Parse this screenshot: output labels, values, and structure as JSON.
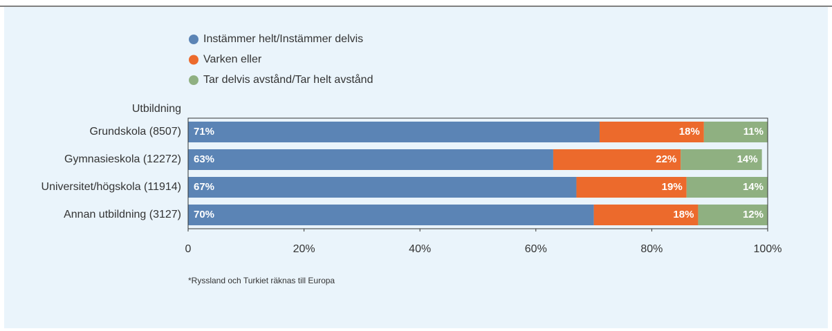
{
  "chart_data": {
    "type": "stacked_bar_horizontal",
    "y_label": "Utbildning",
    "categories": [
      "Grundskola (8507)",
      "Gymnasieskola (12272)",
      "Universitet/högskola (11914)",
      "Annan utbildning (3127)"
    ],
    "series": [
      {
        "name": "Instämmer helt/Instämmer delvis",
        "color": "#5b84b5",
        "values": [
          71,
          63,
          67,
          70
        ],
        "value_labels": [
          "71%",
          "63%",
          "67%",
          "70%"
        ]
      },
      {
        "name": "Varken eller",
        "color": "#ec6a2c",
        "values": [
          18,
          22,
          19,
          18
        ],
        "value_labels": [
          "18%",
          "22%",
          "19%",
          "18%"
        ]
      },
      {
        "name": "Tar delvis avstånd/Tar helt avstånd",
        "color": "#8fb081",
        "values": [
          11,
          14,
          14,
          12
        ],
        "value_labels": [
          "11%",
          "14%",
          "14%",
          "12%"
        ]
      }
    ],
    "xlim": [
      0,
      100
    ],
    "xticks": [
      0,
      {
        "value": 20,
        "label": "20%"
      },
      {
        "value": 40,
        "label": "40%"
      },
      {
        "value": 60,
        "label": "60%"
      },
      {
        "value": 80,
        "label": "80%"
      },
      {
        "value": 100,
        "label": "100%"
      }
    ],
    "footnote": "*Ryssland och Turkiet räknas till Europa"
  }
}
